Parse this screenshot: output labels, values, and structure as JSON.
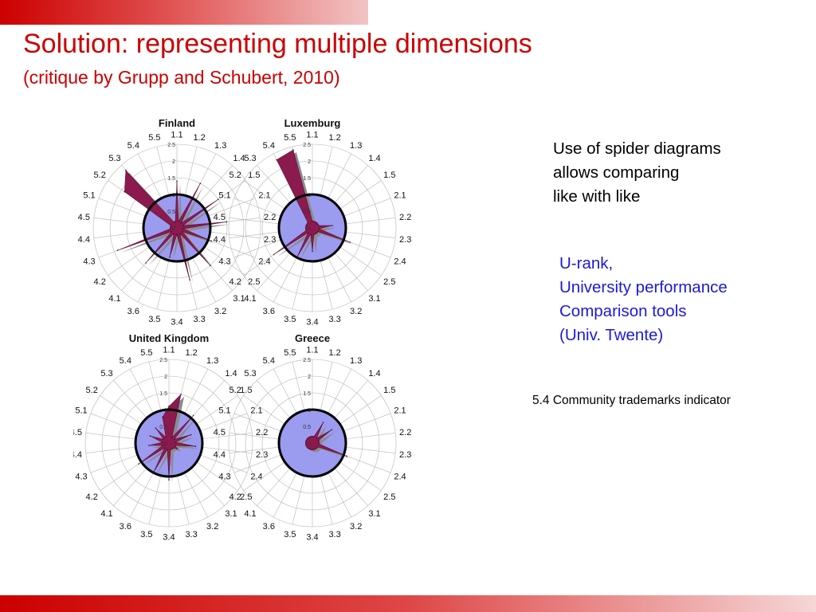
{
  "slide": {
    "title": "Solution: representing multiple dimensions",
    "subtitle": "(critique by Grupp and Schubert, 2010)",
    "spider_text": [
      "Use of spider diagrams",
      "allows comparing",
      "like with like"
    ],
    "urank_text": [
      "U-rank,",
      "University performance",
      "Comparison tools",
      "(Univ. Twente)"
    ],
    "indicator_text": "5.4 Community trademarks indicator",
    "colors": {
      "accent": "#cc0000",
      "link_blue": "#1a1adb",
      "fill_purple": "#8b1a4f",
      "shadow_gray": "#8c8c8c",
      "baseline_blue": "#9b9bf0"
    }
  },
  "chart_data": [
    {
      "type": "radar",
      "title": "Finland",
      "axes": [
        "1.1",
        "1.2",
        "1.3",
        "1.4",
        "1.5",
        "2.1",
        "2.2",
        "2.3",
        "2.4",
        "2.5",
        "3.1",
        "3.2",
        "3.3",
        "3.4",
        "3.5",
        "3.6",
        "4.1",
        "4.2",
        "4.3",
        "4.4",
        "4.5",
        "5.1",
        "5.2",
        "5.3",
        "5.4",
        "5.5"
      ],
      "ring_labels": [
        "0",
        "0.5",
        "1",
        "1.5",
        "2",
        "2.5"
      ],
      "rmax": 2.5,
      "baseline": 1,
      "values": [
        1.4,
        0.2,
        1.5,
        0.2,
        1.5,
        0.2,
        1.5,
        0.2,
        1.1,
        0.2,
        1.5,
        0.2,
        1.6,
        0.2,
        0.9,
        0.2,
        1.4,
        0.2,
        1.9,
        0.2,
        0.2,
        0.2,
        1.9,
        2.3,
        0.2,
        0.2
      ]
    },
    {
      "type": "radar",
      "title": "Luxemburg",
      "axes": [
        "1.1",
        "1.2",
        "1.3",
        "1.4",
        "1.5",
        "2.1",
        "2.2",
        "2.3",
        "2.4",
        "2.5",
        "3.1",
        "3.2",
        "3.3",
        "3.4",
        "3.5",
        "3.6",
        "4.1",
        "4.2",
        "4.3",
        "4.4",
        "4.5",
        "5.1",
        "5.2",
        "5.3",
        "5.4",
        "5.5"
      ],
      "ring_labels": [
        "0",
        "0.5",
        "1",
        "1.5",
        "2",
        "2.5"
      ],
      "rmax": 2.5,
      "baseline": 1,
      "values": [
        0.2,
        0.2,
        0.2,
        0.2,
        0.2,
        0.2,
        0.6,
        0.2,
        1.2,
        0.2,
        0.2,
        0.2,
        0.2,
        0.7,
        0.2,
        1.0,
        0.2,
        1.4,
        0.2,
        0.2,
        0.2,
        0.2,
        0.2,
        0.2,
        2.3,
        2.4
      ]
    },
    {
      "type": "radar",
      "title": "United Kingdom",
      "axes": [
        "1.1",
        "1.2",
        "1.3",
        "1.4",
        "1.5",
        "2.1",
        "2.2",
        "2.3",
        "2.4",
        "2.5",
        "3.1",
        "3.2",
        "3.3",
        "3.4",
        "3.5",
        "3.6",
        "4.1",
        "4.2",
        "4.3",
        "4.4",
        "4.5",
        "5.1",
        "5.2",
        "5.3",
        "5.4",
        "5.5"
      ],
      "ring_labels": [
        "0",
        "0.5",
        "1",
        "1.5",
        "2",
        "2.5"
      ],
      "rmax": 2.5,
      "baseline": 1,
      "values": [
        1.1,
        1.5,
        0.2,
        1.1,
        0.2,
        0.7,
        0.2,
        0.8,
        0.2,
        0.3,
        0.2,
        0.2,
        0.2,
        1.1,
        0.2,
        1.0,
        0.2,
        1.1,
        0.2,
        0.6,
        0.2,
        0.6,
        0.2,
        0.6,
        0.2,
        0.8
      ]
    },
    {
      "type": "radar",
      "title": "Greece",
      "axes": [
        "1.1",
        "1.2",
        "1.3",
        "1.4",
        "1.5",
        "2.1",
        "2.2",
        "2.3",
        "2.4",
        "2.5",
        "3.1",
        "3.2",
        "3.3",
        "3.4",
        "3.5",
        "3.6",
        "4.1",
        "4.2",
        "4.3",
        "4.4",
        "4.5",
        "5.1",
        "5.2",
        "5.3",
        "5.4",
        "5.5"
      ],
      "ring_labels": [
        "0",
        "0.5",
        "1",
        "1.5",
        "2",
        "2.5"
      ],
      "rmax": 2.5,
      "baseline": 1,
      "values": [
        0.2,
        0.2,
        0.7,
        0.2,
        0.7,
        0.2,
        0.2,
        0.2,
        1.1,
        0.2,
        0.2,
        0.2,
        0.2,
        0.2,
        0.2,
        0.2,
        0.2,
        0.2,
        0.2,
        0.2,
        0.2,
        0.2,
        0.2,
        0.2,
        0.2,
        0.2
      ]
    }
  ]
}
